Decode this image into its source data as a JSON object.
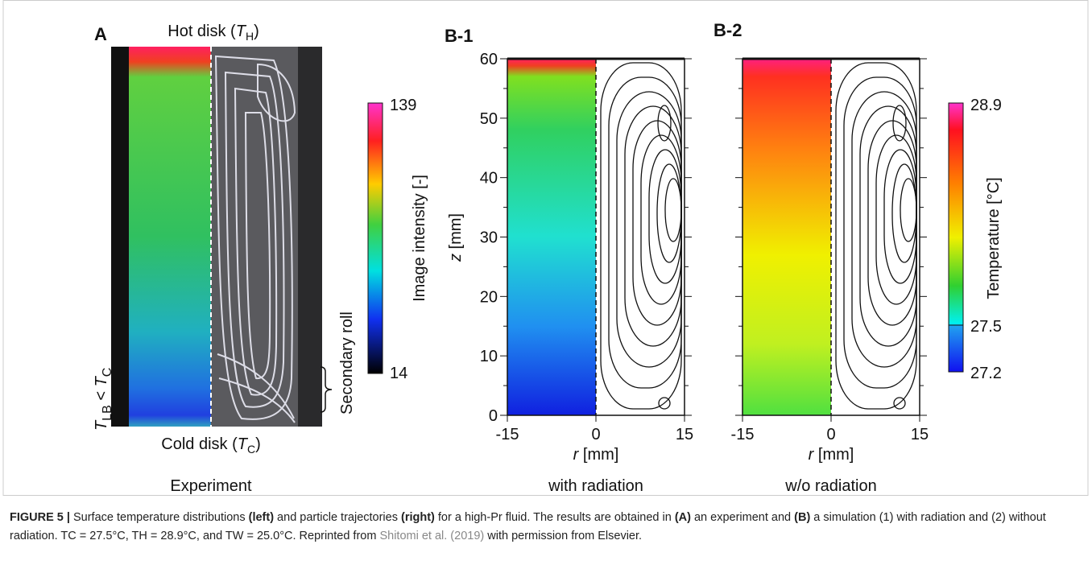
{
  "panel_a": {
    "label": "A",
    "top_label": {
      "prefix": "Hot disk (",
      "var": "T",
      "sub": "H",
      "suffix": ")"
    },
    "bottom_label": {
      "prefix": "Cold disk (",
      "var": "T",
      "sub": "C",
      "suffix": ")"
    },
    "caption": "Experiment",
    "annotation": "Secondary roll",
    "boundary_label": {
      "var1": "T",
      "sub1": "LB",
      "op": " < ",
      "var2": "T",
      "sub2": "C"
    },
    "colorbar": {
      "max": 139,
      "min": 14,
      "title": "Image intensity [-]"
    }
  },
  "panel_b1": {
    "label": "B-1",
    "yticks": [
      0,
      10,
      20,
      30,
      40,
      50,
      60
    ],
    "xticks": [
      -15,
      0,
      15
    ],
    "ylabel": {
      "var": "z",
      "unit": " [mm]"
    },
    "xlabel": {
      "var": "r",
      "unit": " [mm]"
    },
    "caption": "with radiation"
  },
  "panel_b2": {
    "label": "B-2",
    "xticks": [
      -15,
      0,
      15
    ],
    "xlabel": {
      "var": "r",
      "unit": " [mm]"
    },
    "caption": "w/o radiation"
  },
  "colorbar_b": {
    "max": 28.9,
    "mid": 27.5,
    "min": 27.2,
    "title": "Temperature [°C]"
  },
  "figure_caption": {
    "parts": [
      "FIGURE 5 |",
      " Surface temperature distributions ",
      "(left)",
      " and particle trajectories ",
      "(right)",
      " for a high-Pr fluid. The results are obtained in ",
      "(A)",
      " an experiment and ",
      "(B)",
      " a simulation (1) with radiation and (2) without radiation. TC = 27.5°C, TH = 28.9°C, and TW = 25.0°C. Reprinted from ",
      "Shitomi et al. (2019)",
      " with permission from Elsevier."
    ]
  }
}
